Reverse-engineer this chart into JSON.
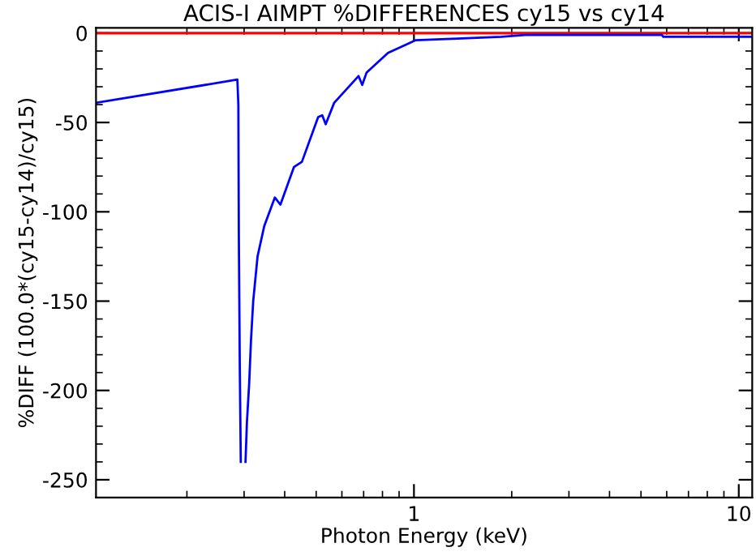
{
  "chart_data": {
    "type": "line",
    "title": "ACIS-I AIMPT %DIFFERENCES cy15 vs cy14",
    "xlabel": "Photon Energy (keV)",
    "ylabel": "%DIFF (100.0*(cy15-cy14)/cy15)",
    "log": "x",
    "grid": false,
    "legend": false,
    "marker": "none",
    "line_style": "solid",
    "xlim": [
      0.105,
      11
    ],
    "ylim": [
      -260,
      3
    ],
    "xticks": [
      1,
      10
    ],
    "yticks": [
      -250,
      -200,
      -150,
      -100,
      -50,
      0
    ],
    "ref_lines": [
      {
        "axis": "y",
        "value": 0,
        "color": "#ff0000"
      }
    ],
    "series": [
      {
        "color": "#0000ff",
        "x": [
          0.105,
          0.286,
          0.288,
          0.289,
          0.291,
          0.293,
          0.296,
          0.299,
          0.303,
          0.306,
          0.311,
          0.315,
          0.32,
          0.33,
          0.346,
          0.373,
          0.388,
          0.427,
          0.452,
          0.507,
          0.522,
          0.535,
          0.568,
          0.675,
          0.693,
          0.715,
          0.832,
          1.01,
          1.36,
          1.86,
          2.2,
          5.8,
          5.85,
          11
        ],
        "values": [
          -39,
          -26,
          -40,
          -113,
          -188,
          -240,
          null,
          null,
          -240,
          -218,
          -196,
          -172,
          -150,
          -125,
          -108,
          -92,
          -96,
          -75,
          -72,
          -47,
          -46,
          -51,
          -39,
          -24,
          -29,
          -22,
          -11,
          -4,
          -3,
          -2,
          -1,
          -1,
          -2,
          -2
        ]
      }
    ]
  }
}
